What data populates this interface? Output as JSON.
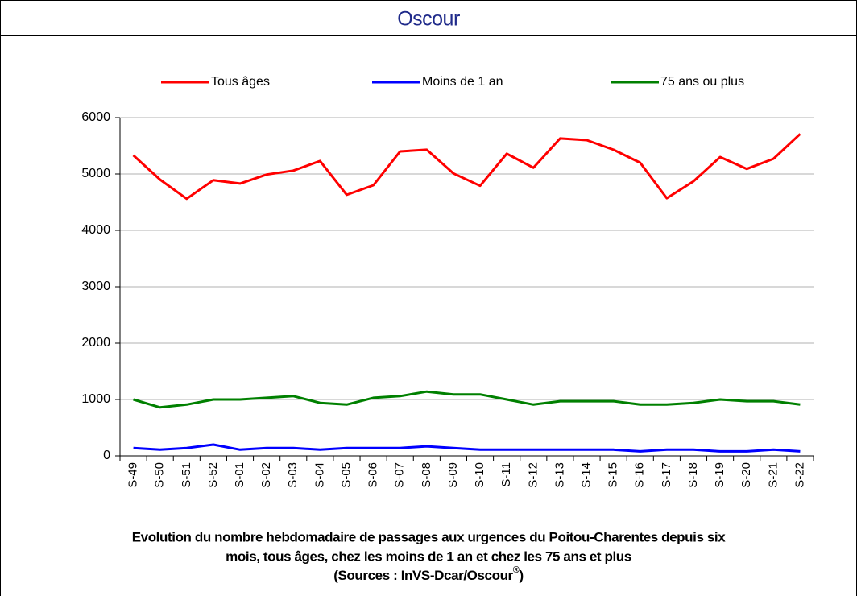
{
  "header": "Oscour",
  "chart_data": {
    "type": "line",
    "categories": [
      "S-49",
      "S-50",
      "S-51",
      "S-52",
      "S-01",
      "S-02",
      "S-03",
      "S-04",
      "S-05",
      "S-06",
      "S-07",
      "S-08",
      "S-09",
      "S-10",
      "S-11",
      "S-12",
      "S-13",
      "S-14",
      "S-15",
      "S-16",
      "S-17",
      "S-18",
      "S-19",
      "S-20",
      "S-21",
      "S-22"
    ],
    "series": [
      {
        "name": "Tous âges",
        "color": "#ff0000",
        "values": [
          5330,
          4900,
          4560,
          4890,
          4830,
          4990,
          5060,
          5230,
          4630,
          4800,
          5400,
          5430,
          5010,
          4790,
          5360,
          5110,
          5630,
          5600,
          5430,
          5200,
          4570,
          4870,
          5300,
          5090,
          5270,
          5710
        ]
      },
      {
        "name": "Moins de 1 an",
        "color": "#0000ff",
        "values": [
          140,
          110,
          140,
          200,
          110,
          140,
          140,
          110,
          140,
          140,
          140,
          170,
          140,
          110,
          110,
          110,
          110,
          110,
          110,
          80,
          110,
          110,
          80,
          80,
          110,
          80
        ]
      },
      {
        "name": "75 ans ou plus",
        "color": "#008000",
        "values": [
          1000,
          860,
          910,
          1000,
          1000,
          1030,
          1060,
          940,
          910,
          1030,
          1060,
          1140,
          1090,
          1090,
          1000,
          910,
          970,
          970,
          970,
          910,
          910,
          940,
          1000,
          970,
          970,
          910
        ]
      }
    ],
    "ylim": [
      0,
      6000
    ],
    "yticks": [
      0,
      1000,
      2000,
      3000,
      4000,
      5000,
      6000
    ],
    "grid": true,
    "legend": "top",
    "caption": [
      "Evolution du nombre hebdomadaire de passages aux urgences du Poitou-Charentes depuis six",
      "mois, tous âges, chez les moins de 1 an et chez les 75 ans  et plus"
    ],
    "source": "(Sources : InVS-Dcar/Oscour",
    "source_mark": "®",
    "source_end": ")"
  }
}
